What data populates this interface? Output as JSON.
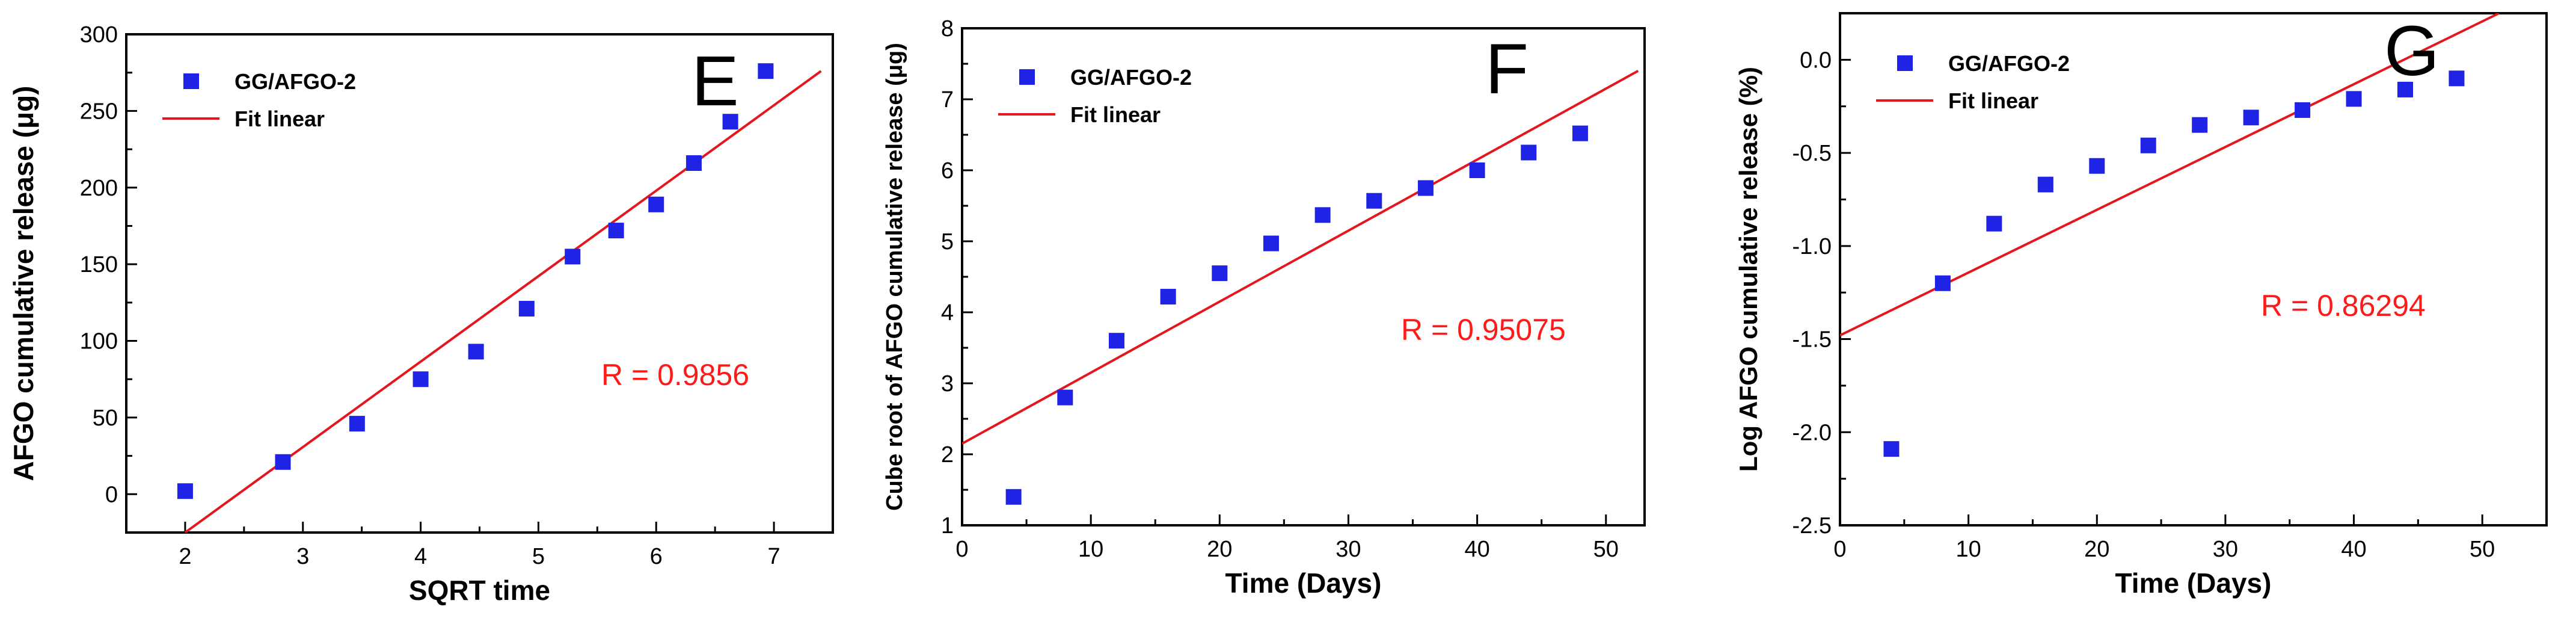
{
  "colors": {
    "marker": "#1f23e6",
    "fit": "#e5171e",
    "annotation": "#ff1a1a",
    "axis": "#000000"
  },
  "chart_data": [
    {
      "type": "scatter",
      "panel": "E",
      "xlabel": "SQRT time",
      "ylabel": "AFGO cumulative release (μg)",
      "xlim": [
        1.5,
        7.5
      ],
      "ylim": [
        -25,
        300
      ],
      "xticks": [
        2,
        3,
        4,
        5,
        6,
        7
      ],
      "yticks": [
        0,
        50,
        100,
        150,
        200,
        250,
        300
      ],
      "series": [
        {
          "name": "GG/AFGO-2",
          "kind": "points",
          "x": [
            2.0,
            2.83,
            3.46,
            4.0,
            4.47,
            4.9,
            5.29,
            5.66,
            6.0,
            6.32,
            6.63,
            6.93
          ],
          "y": [
            2,
            21,
            46,
            75,
            93,
            121,
            155,
            172,
            189,
            216,
            243,
            276
          ]
        },
        {
          "name": "Fit linear",
          "kind": "line",
          "x": [
            2.0,
            7.4
          ],
          "y": [
            -25,
            276
          ]
        }
      ],
      "annotation": "R = 0.9856"
    },
    {
      "type": "scatter",
      "panel": "F",
      "xlabel": "Time (Days)",
      "ylabel": "Cube root of AFGO cumulative release (μg)",
      "xlim": [
        0,
        53
      ],
      "ylim": [
        1,
        8
      ],
      "xticks": [
        0,
        10,
        20,
        30,
        40,
        50
      ],
      "yticks": [
        1,
        2,
        3,
        4,
        5,
        6,
        7,
        8
      ],
      "series": [
        {
          "name": "GG/AFGO-2",
          "kind": "points",
          "x": [
            4,
            8,
            12,
            16,
            20,
            24,
            28,
            32,
            36,
            40,
            44,
            48
          ],
          "y": [
            1.4,
            2.8,
            3.6,
            4.22,
            4.55,
            4.97,
            5.37,
            5.57,
            5.75,
            6.0,
            6.25,
            6.52
          ]
        },
        {
          "name": "Fit linear",
          "kind": "line",
          "x": [
            0,
            52.5
          ],
          "y": [
            2.15,
            7.4
          ]
        }
      ],
      "annotation": "R = 0.95075"
    },
    {
      "type": "scatter",
      "panel": "G",
      "xlabel": "Time (Days)",
      "ylabel": "Log AFGO cumulative release (%)",
      "xlim": [
        0,
        55
      ],
      "ylim": [
        -2.5,
        0.25
      ],
      "xticks": [
        0,
        10,
        20,
        30,
        40,
        50
      ],
      "yticks": [
        -2.5,
        -2.0,
        -1.5,
        -1.0,
        -0.5,
        0.0
      ],
      "yticklabels": [
        "-2.5",
        "-2.0",
        "-1.5",
        "-1.0",
        "-0.5",
        "0.0"
      ],
      "series": [
        {
          "name": "GG/AFGO-2",
          "kind": "points",
          "x": [
            4,
            8,
            12,
            16,
            20,
            24,
            28,
            32,
            36,
            40,
            44,
            48
          ],
          "y": [
            -2.09,
            -1.2,
            -0.88,
            -0.67,
            -0.57,
            -0.46,
            -0.35,
            -0.31,
            -0.27,
            -0.21,
            -0.16,
            -0.1
          ]
        },
        {
          "name": "Fit linear",
          "kind": "line",
          "x": [
            0,
            51.3
          ],
          "y": [
            -1.48,
            0.25
          ]
        }
      ],
      "annotation": "R = 0.86294"
    }
  ]
}
